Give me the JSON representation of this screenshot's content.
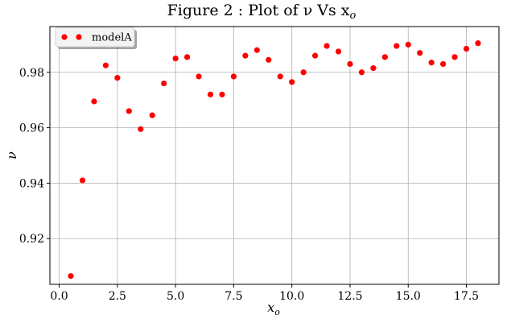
{
  "chart_data": {
    "type": "scatter",
    "title": "Figure 2 : Plot of ν Vs x",
    "title_subscript": "o",
    "xlabel": "x",
    "xlabel_subscript": "o",
    "ylabel": "ν",
    "xlim": [
      -0.4,
      18.9
    ],
    "ylim": [
      0.9035,
      0.9965
    ],
    "xticks": [
      0.0,
      2.5,
      5.0,
      7.5,
      10.0,
      12.5,
      15.0,
      17.5
    ],
    "xtick_labels": [
      "0.0",
      "2.5",
      "5.0",
      "7.5",
      "10.0",
      "12.5",
      "15.0",
      "17.5"
    ],
    "yticks": [
      0.92,
      0.94,
      0.96,
      0.98
    ],
    "ytick_labels": [
      "0.92",
      "0.94",
      "0.96",
      "0.98"
    ],
    "grid": true,
    "legend_position": "top-left",
    "series": [
      {
        "name": "modelA",
        "color": "#ff0000",
        "marker": "circle",
        "x": [
          0.5,
          1.0,
          1.5,
          2.0,
          2.5,
          3.0,
          3.5,
          4.0,
          4.5,
          5.0,
          5.5,
          6.0,
          6.5,
          7.0,
          7.5,
          8.0,
          8.5,
          9.0,
          9.5,
          10.0,
          10.5,
          11.0,
          11.5,
          12.0,
          12.5,
          13.0,
          13.5,
          14.0,
          14.5,
          15.0,
          15.5,
          16.0,
          16.5,
          17.0,
          17.5,
          18.0
        ],
        "y": [
          0.9065,
          0.941,
          0.9695,
          0.9825,
          0.978,
          0.966,
          0.9595,
          0.9645,
          0.976,
          0.985,
          0.9855,
          0.9785,
          0.972,
          0.972,
          0.9785,
          0.986,
          0.988,
          0.9845,
          0.9785,
          0.9765,
          0.98,
          0.986,
          0.9895,
          0.9875,
          0.983,
          0.98,
          0.9815,
          0.9855,
          0.9895,
          0.99,
          0.987,
          0.9835,
          0.983,
          0.9855,
          0.9885,
          0.9905
        ]
      }
    ]
  }
}
